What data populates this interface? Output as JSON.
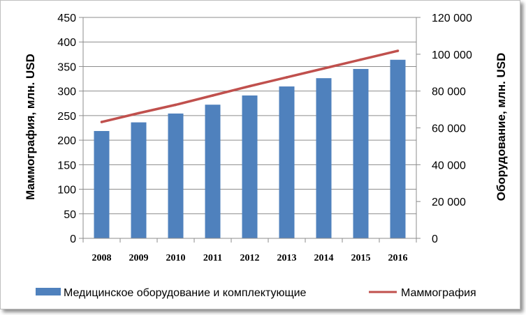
{
  "chart_data": {
    "type": "bar+line",
    "categories": [
      "2008",
      "2009",
      "2010",
      "2011",
      "2012",
      "2013",
      "2014",
      "2015",
      "2016"
    ],
    "series": [
      {
        "name": "Медицинское оборудование и комплектующие",
        "type": "bar",
        "axis": "right",
        "color": "#4f81bd",
        "values": [
          58300,
          63000,
          67800,
          72600,
          77600,
          82500,
          87000,
          92000,
          97000
        ]
      },
      {
        "name": "Маммография",
        "type": "line",
        "axis": "left",
        "color": "#c0504d",
        "values": [
          237,
          255,
          272,
          291,
          310,
          328,
          346,
          364,
          382
        ]
      }
    ],
    "left_axis": {
      "label": "Маммография, млн. USD",
      "range": [
        0,
        450
      ],
      "ticks": [
        "0",
        "50",
        "100",
        "150",
        "200",
        "250",
        "300",
        "350",
        "400",
        "450"
      ]
    },
    "right_axis": {
      "label": "Оборудование, млн. USD",
      "range": [
        0,
        120000
      ],
      "ticks": [
        "0",
        "20 000",
        "40 000",
        "60 000",
        "80 000",
        "100 000",
        "120 000"
      ]
    },
    "grid": true,
    "legend_position": "bottom"
  }
}
